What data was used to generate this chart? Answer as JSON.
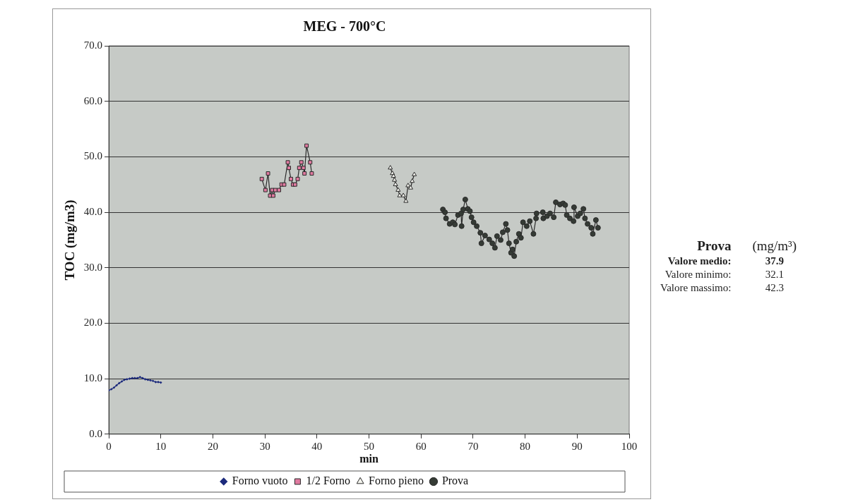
{
  "chart_data": {
    "type": "line",
    "title": "MEG - 700°C",
    "xlabel": "min",
    "ylabel": "TOC (mg/m3)",
    "xlim": [
      0,
      100
    ],
    "xticks": [
      0,
      10,
      20,
      30,
      40,
      50,
      60,
      70,
      80,
      90,
      100
    ],
    "ylim": [
      0,
      70
    ],
    "yticks": [
      {
        "value": 0,
        "label": "0.0"
      },
      {
        "value": 10,
        "label": "10.0"
      },
      {
        "value": 20,
        "label": "20.0"
      },
      {
        "value": 30,
        "label": "30.0"
      },
      {
        "value": 40,
        "label": "40.0"
      },
      {
        "value": 50,
        "label": "50.0"
      },
      {
        "value": 60,
        "label": "60.0"
      },
      {
        "value": 70,
        "label": "70.0"
      }
    ],
    "grid": "y",
    "legend": "bottom",
    "line_style": "solid",
    "series": [
      {
        "name": "Forno vuoto",
        "color": "#1c2a7c",
        "marker": "diamond",
        "x": [
          0,
          0.5,
          1,
          1.5,
          2,
          2.5,
          3,
          3.5,
          4,
          4.5,
          5,
          5.5,
          6,
          6.5,
          7,
          7.5,
          8,
          8.5,
          9,
          9.5,
          10
        ],
        "values": [
          7.9,
          8.1,
          8.4,
          8.8,
          9.2,
          9.5,
          9.8,
          9.9,
          10,
          10.1,
          10.1,
          10.1,
          10.3,
          10.1,
          9.9,
          9.8,
          9.7,
          9.6,
          9.4,
          9.4,
          9.3
        ]
      },
      {
        "name": "1/2 Forno",
        "color": "#e07aa0",
        "marker": "square",
        "x": [
          29.4,
          30.1,
          30.6,
          31,
          31.4,
          31.6,
          32,
          32.7,
          33.2,
          33.7,
          34.4,
          34.6,
          35,
          35.4,
          35.8,
          36.3,
          36.6,
          37,
          37.4,
          37.6,
          38,
          38.7,
          39
        ],
        "values": [
          46,
          44,
          47,
          43,
          44,
          43,
          44,
          44,
          45,
          45,
          49,
          48,
          46,
          45,
          45,
          46,
          48,
          49,
          48,
          47,
          52,
          49,
          47
        ]
      },
      {
        "name": "Forno pieno",
        "color": "#f4f4ee",
        "marker": "triangle",
        "x": [
          54.1,
          54.5,
          54.7,
          54.9,
          55.1,
          55.6,
          55.9,
          56.6,
          57.1,
          57.5,
          58,
          58.3,
          58.7
        ],
        "values": [
          48,
          47,
          46.5,
          45.8,
          45,
          44,
          43,
          43,
          42,
          44.8,
          44.4,
          45.6,
          46.8
        ]
      },
      {
        "name": "Prova",
        "color": "#353b35",
        "marker": "circle",
        "x": [
          64.2,
          64.6,
          64.8,
          65.5,
          66.1,
          66.5,
          67.1,
          67.7,
          67.8,
          68.1,
          68.5,
          69,
          69.4,
          69.7,
          70.1,
          70.7,
          71.4,
          71.6,
          72.3,
          73.1,
          73.7,
          74.2,
          74.6,
          75.3,
          75.7,
          76.3,
          76.6,
          76.9,
          77.3,
          77.6,
          77.9,
          78.3,
          78.8,
          79.2,
          79.6,
          80.3,
          80.9,
          81.6,
          82.1,
          82.2,
          83.4,
          83.5,
          84.2,
          84.8,
          85.5,
          85.9,
          86.7,
          87.3,
          87.7,
          88,
          88.6,
          89.3,
          89.4,
          90.1,
          90.6,
          91.2,
          91.5,
          92,
          92.7,
          93,
          93.6,
          94
        ],
        "values": [
          40.5,
          40,
          38.9,
          37.9,
          38.2,
          37.8,
          39.5,
          39.8,
          37.5,
          40.5,
          42.3,
          40.6,
          40.2,
          39.1,
          38.2,
          37.5,
          36.3,
          34.4,
          35.8,
          35.1,
          34.4,
          33.6,
          35.7,
          35,
          36.4,
          37.9,
          36.8,
          34.4,
          32.7,
          33.3,
          32.1,
          34.7,
          36.1,
          35.4,
          38.2,
          37.5,
          38.4,
          36.1,
          38.9,
          39.8,
          40,
          38.9,
          39.3,
          39.8,
          39.1,
          41.8,
          41.4,
          41.6,
          41.3,
          39.5,
          38.9,
          38.4,
          40.9,
          39.3,
          39.8,
          40.6,
          38.9,
          37.9,
          37.2,
          36.1,
          38.6,
          37.2
        ]
      }
    ],
    "annotations": [
      "Prova",
      "(mg/m³)",
      "Valore medio:",
      "37.9",
      "Valore minimo:",
      "32.1",
      "Valore massimo:",
      "42.3"
    ]
  }
}
